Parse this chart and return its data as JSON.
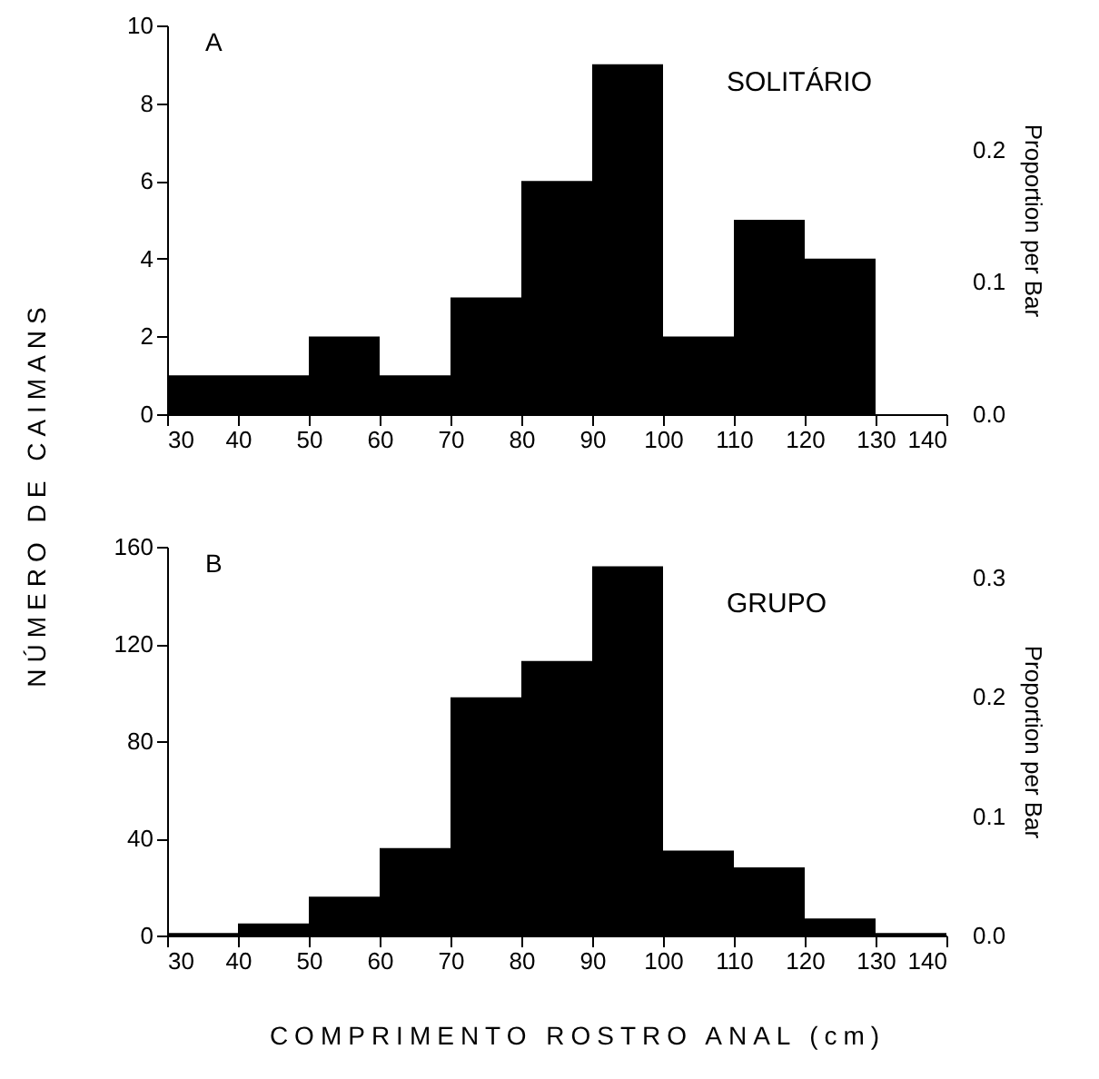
{
  "chart_data": [
    {
      "type": "histogram",
      "ylabel": "NÚMERO DE CAIMANS",
      "y2label": "Proportion per Bar",
      "annotations": [
        "A",
        "SOLITÁRIO"
      ],
      "bins": [
        30,
        40,
        50,
        60,
        70,
        80,
        90,
        100,
        110,
        120,
        130
      ],
      "values": [
        1,
        1,
        2,
        1,
        3,
        6,
        9,
        2,
        5,
        4
      ],
      "color": "#000000",
      "xlim": [
        30,
        140
      ],
      "xticks": [
        30,
        40,
        50,
        60,
        70,
        80,
        90,
        100,
        110,
        120,
        130,
        140
      ],
      "ylim": [
        0,
        10
      ],
      "yticks": [
        0,
        2,
        4,
        6,
        8,
        10
      ],
      "y2lim": [
        0,
        0.294
      ],
      "y2ticks": [
        {
          "value": 0,
          "label": "0.0"
        },
        0.1,
        0.2
      ],
      "grid": false
    },
    {
      "type": "histogram",
      "xlabel": "COMPRIMENTO ROSTRO ANAL (cm)",
      "y2label": "Proportion per Bar",
      "annotations": [
        "B",
        "GRUPO"
      ],
      "bins": [
        30,
        40,
        50,
        60,
        70,
        80,
        90,
        100,
        110,
        120,
        130,
        140
      ],
      "values": [
        1,
        5,
        16,
        36,
        98,
        113,
        152,
        35,
        28,
        7,
        1
      ],
      "color": "#000000",
      "xlim": [
        30,
        140
      ],
      "xticks": [
        30,
        40,
        50,
        60,
        70,
        80,
        90,
        100,
        110,
        120,
        130,
        140
      ],
      "ylim": [
        0,
        160
      ],
      "yticks": [
        0,
        40,
        80,
        120,
        160
      ],
      "y2lim": [
        0,
        0.326
      ],
      "y2ticks": [
        {
          "value": 0,
          "label": "0.0"
        },
        0.1,
        0.2,
        0.3
      ],
      "grid": false
    }
  ]
}
